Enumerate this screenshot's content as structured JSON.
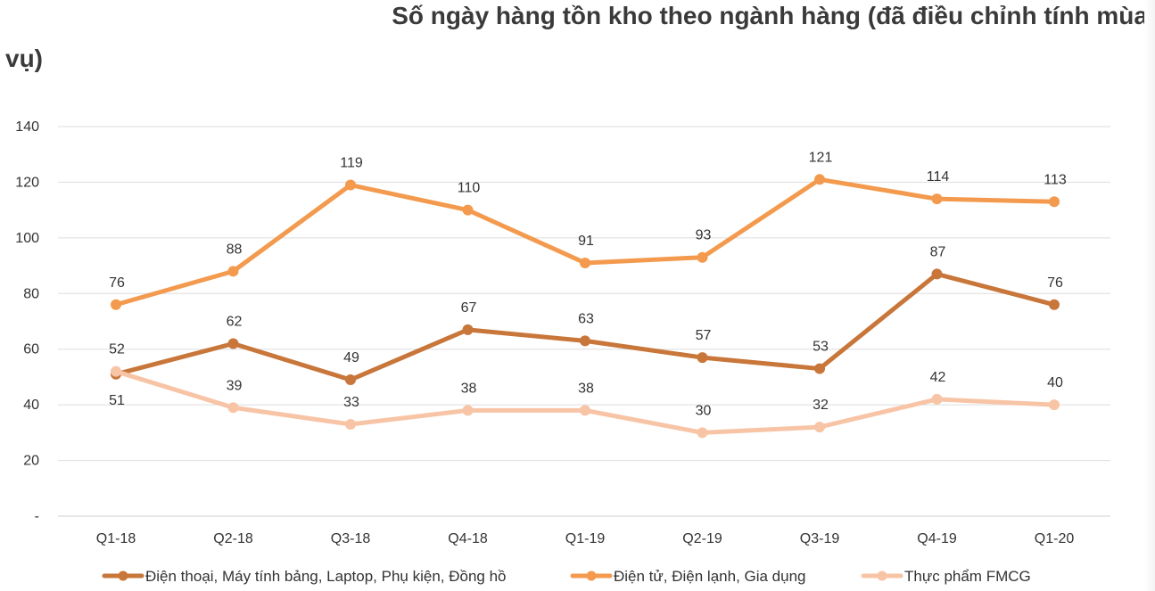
{
  "title_line1": "Số ngày hàng tồn kho theo ngành hàng (đã điều chỉnh tính mùa",
  "title_line2": "vụ)",
  "chart_data": {
    "type": "line",
    "categories": [
      "Q1-18",
      "Q2-18",
      "Q3-18",
      "Q4-18",
      "Q1-19",
      "Q2-19",
      "Q3-19",
      "Q4-19",
      "Q1-20"
    ],
    "yticks": [
      "-",
      "20",
      "40",
      "60",
      "80",
      "100",
      "120",
      "140"
    ],
    "ylim": [
      0,
      140
    ],
    "grid": true,
    "legend_position": "bottom",
    "series": [
      {
        "name": "Điện thoại, Máy tính bảng, Laptop, Phụ kiện, Đồng hồ",
        "color": "#c8763a",
        "values": [
          51,
          62,
          49,
          67,
          63,
          57,
          53,
          87,
          76
        ],
        "label_pos": [
          "below",
          "above",
          "above",
          "above",
          "above",
          "above",
          "above",
          "above",
          "above"
        ]
      },
      {
        "name": "Điện tử, Điện lạnh, Gia dụng",
        "color": "#f39a4e",
        "values": [
          76,
          88,
          119,
          110,
          91,
          93,
          121,
          114,
          113
        ],
        "label_pos": [
          "above",
          "above",
          "above",
          "above",
          "above",
          "above",
          "above",
          "above",
          "above"
        ]
      },
      {
        "name": "Thực phẩm FMCG",
        "color": "#f8c4a6",
        "values": [
          52,
          39,
          33,
          38,
          38,
          30,
          32,
          42,
          40
        ],
        "label_pos": [
          "above",
          "above",
          "above",
          "above",
          "above",
          "above",
          "above",
          "above",
          "above"
        ]
      }
    ]
  }
}
